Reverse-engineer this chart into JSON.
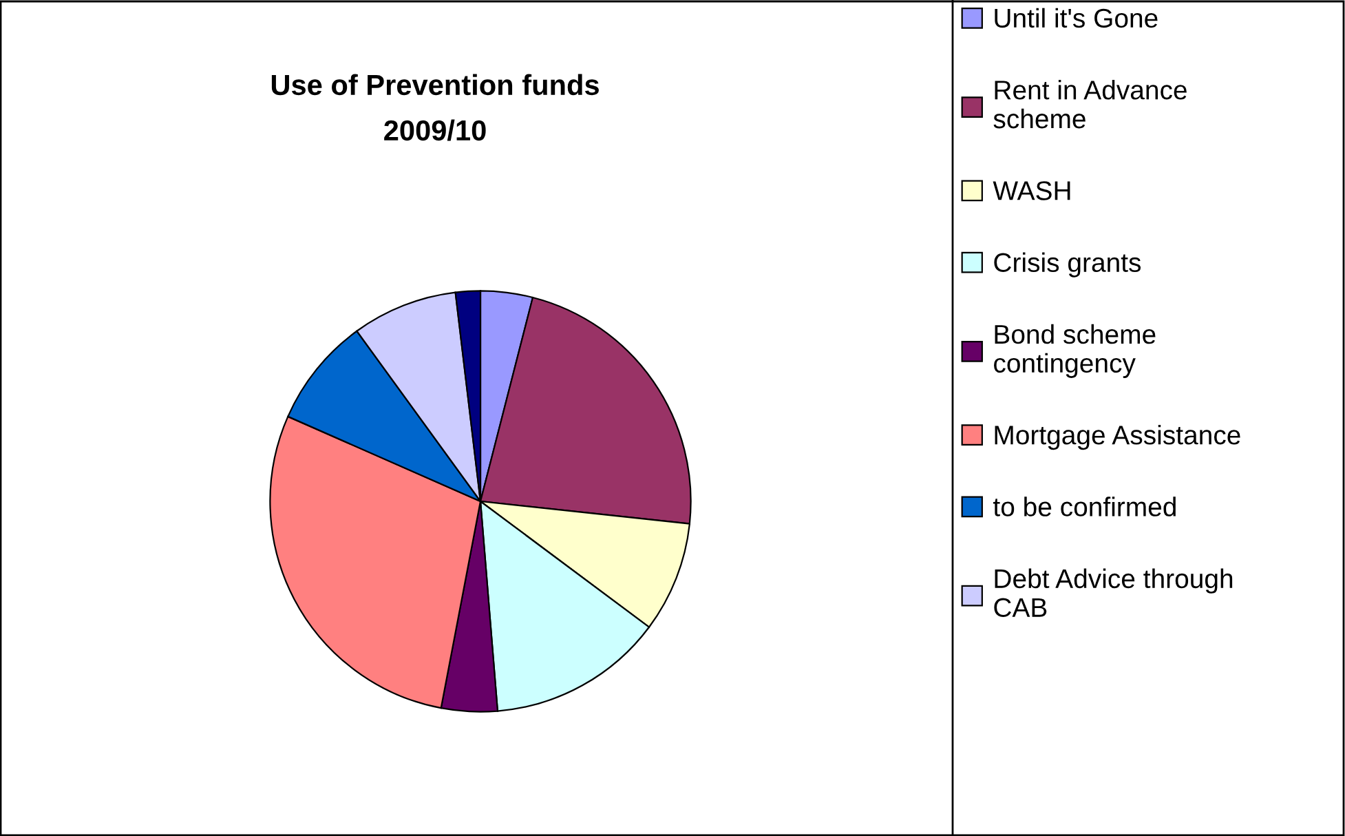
{
  "chart_data": {
    "type": "pie",
    "title": "Use of Prevention funds 2009/10",
    "categories": [
      "Until it's Gone",
      "Rent in Advance scheme",
      "WASH",
      "Crisis grants",
      "Bond scheme contingency",
      "Mortgage Assistance",
      "to be confirmed",
      "Debt Advice through CAB",
      null
    ],
    "values": [
      4,
      22.7,
      8.5,
      13.5,
      4.3,
      28.6,
      8.4,
      8.1,
      1.9
    ],
    "colors": [
      "#9999ff",
      "#993366",
      "#ffffcc",
      "#ccffff",
      "#660066",
      "#ff8080",
      "#0066cc",
      "#ccccff",
      "#000080"
    ],
    "legend": "right"
  }
}
